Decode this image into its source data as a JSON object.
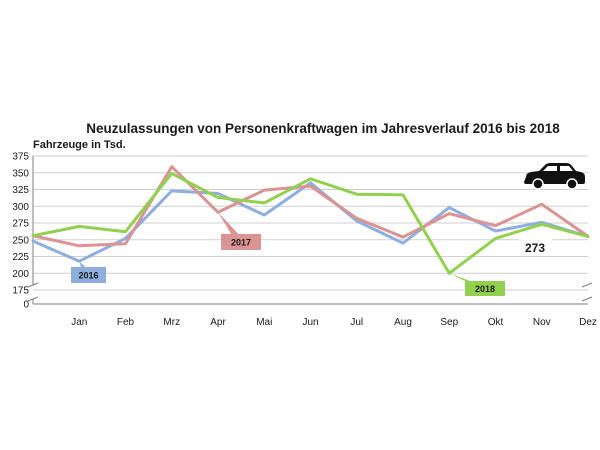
{
  "chart_data": {
    "type": "line",
    "title": "Neuzulassungen von Personenkraftwagen im Jahresverlauf 2016 bis 2018",
    "ylabel": "Fahrzeuge in Tsd.",
    "xlabel": "",
    "categories": [
      "Jan",
      "Feb",
      "Mrz",
      "Apr",
      "Mai",
      "Jun",
      "Jul",
      "Aug",
      "Sep",
      "Okt",
      "Nov",
      "Dez"
    ],
    "x_start_value": {
      "2016": 248,
      "2017": 256,
      "2018": 256
    },
    "series": [
      {
        "name": "2016",
        "color": "#8eaede",
        "values": [
          218,
          252,
          323,
          319,
          287,
          335,
          278,
          245,
          298,
          263,
          276,
          255
        ]
      },
      {
        "name": "2017",
        "color": "#d99493",
        "values": [
          241,
          244,
          359,
          291,
          324,
          330,
          282,
          254,
          289,
          271,
          303,
          255
        ]
      },
      {
        "name": "2018",
        "color": "#92d050",
        "values": [
          270,
          262,
          349,
          313,
          305,
          341,
          318,
          317,
          200,
          252,
          273,
          255
        ]
      }
    ],
    "ylim": [
      0,
      375
    ],
    "y_ticks": [
      0,
      175,
      200,
      225,
      250,
      275,
      300,
      325,
      350,
      375
    ],
    "axis_break": {
      "from": 0,
      "to": 175
    },
    "grid": true,
    "legend": "inline-tags",
    "annotation": {
      "text": "273",
      "series": "2018",
      "month": "Nov"
    },
    "icon": "car-icon"
  }
}
